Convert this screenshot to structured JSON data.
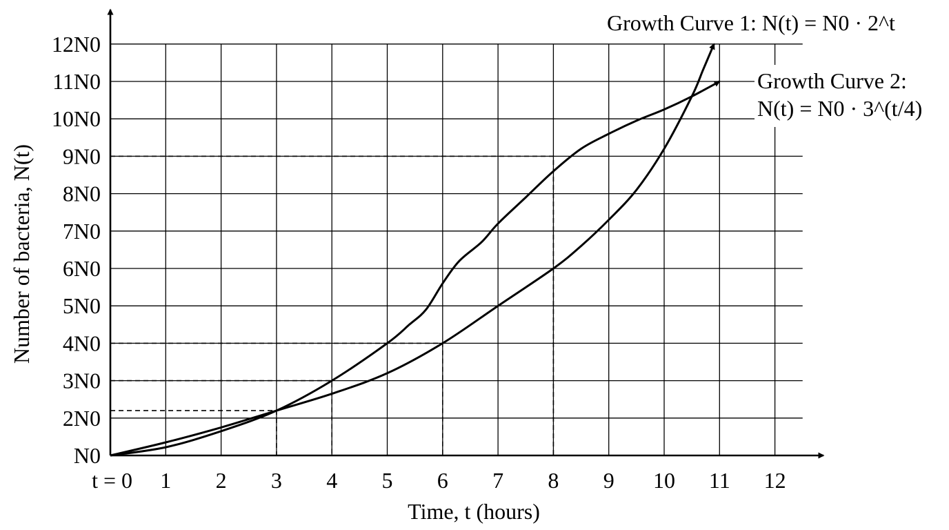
{
  "chart_data": {
    "type": "line",
    "xlabel": "Time, t (hours)",
    "ylabel": "Number of bacteria, N(t)",
    "xlim": [
      0,
      12.5
    ],
    "ylim": [
      0,
      12.5
    ],
    "grid": true,
    "x_ticks": [
      {
        "value": 0,
        "label": "t = 0"
      },
      {
        "value": 1,
        "label": "1"
      },
      {
        "value": 2,
        "label": "2"
      },
      {
        "value": 3,
        "label": "3"
      },
      {
        "value": 4,
        "label": "4"
      },
      {
        "value": 5,
        "label": "5"
      },
      {
        "value": 6,
        "label": "6"
      },
      {
        "value": 7,
        "label": "7"
      },
      {
        "value": 8,
        "label": "8"
      },
      {
        "value": 9,
        "label": "9"
      },
      {
        "value": 10,
        "label": "10"
      },
      {
        "value": 11,
        "label": "11"
      },
      {
        "value": 12,
        "label": "12"
      }
    ],
    "y_ticks": [
      {
        "value": 0,
        "label": "N0"
      },
      {
        "value": 1,
        "label": "2N0"
      },
      {
        "value": 2,
        "label": "3N0"
      },
      {
        "value": 3,
        "label": "4N0"
      },
      {
        "value": 4,
        "label": "5N0"
      },
      {
        "value": 5,
        "label": "6N0"
      },
      {
        "value": 6,
        "label": "7N0"
      },
      {
        "value": 7,
        "label": "8N0"
      },
      {
        "value": 8,
        "label": "9N0"
      },
      {
        "value": 9,
        "label": "10N0"
      },
      {
        "value": 10,
        "label": "11N0"
      },
      {
        "value": 11,
        "label": "12N0"
      }
    ],
    "series": [
      {
        "name": "Growth Curve 1: N(t) = N0 · 2^t",
        "legend_main": "Growth Curve 1: ",
        "formula": "N(t) = N0 · 2^t",
        "x": [
          0,
          1,
          2,
          3,
          4,
          5,
          5.4,
          5.7,
          6,
          6.3,
          6.7,
          7,
          7.5,
          8,
          8.5,
          9,
          9.5,
          10,
          10.5,
          11
        ],
        "y": [
          0,
          0.22,
          0.65,
          1.2,
          2.0,
          3.0,
          3.5,
          3.9,
          4.6,
          5.2,
          5.7,
          6.2,
          6.9,
          7.6,
          8.2,
          8.6,
          8.95,
          9.25,
          9.6,
          10.0
        ]
      },
      {
        "name": "Growth Curve 2: N(t) = N0 · 3^(t/4)",
        "legend_main": "Growth Curve 2:",
        "formula": "N(t) = N0 · 3^(t/4)",
        "x": [
          0,
          1,
          2,
          3,
          4,
          5,
          6,
          7,
          8,
          8.5,
          9,
          9.5,
          10,
          10.5,
          10.7,
          10.9
        ],
        "y": [
          0,
          0.35,
          0.75,
          1.2,
          1.65,
          2.2,
          3.0,
          4.0,
          5.0,
          5.6,
          6.3,
          7.1,
          8.2,
          9.6,
          10.3,
          11.0
        ]
      }
    ],
    "guides": [
      {
        "x": 3,
        "y": 1.2
      },
      {
        "x": 4,
        "y": 2
      },
      {
        "x": 6,
        "y": 3
      },
      {
        "x": 8,
        "y": 8
      }
    ]
  }
}
